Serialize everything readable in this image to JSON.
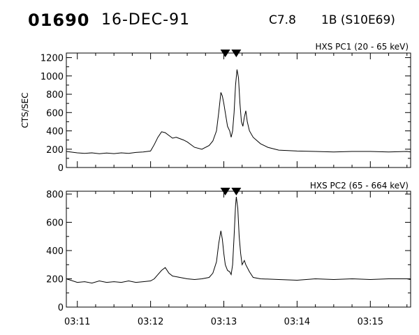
{
  "header": {
    "event_number": "01690",
    "date": "16-DEC-91",
    "goes_class": "C7.8",
    "optical_class": "1B (S10E69)"
  },
  "style": {
    "line_color": "#000000",
    "background": "#ffffff"
  },
  "chart_data": [
    {
      "type": "line",
      "title": "HXS PC1 (20 - 65 keV)",
      "ylabel": "CTS/SEC",
      "xlabel": "",
      "x_unit": "minutes after 03:11 UT",
      "xlim": [
        -0.15,
        4.55
      ],
      "ylim": [
        0,
        1250
      ],
      "yticks": [
        0,
        200,
        400,
        600,
        800,
        1000,
        1200
      ],
      "marker_times": [
        2.02,
        2.17
      ],
      "series": [
        {
          "values": [
            [
              -0.15,
              175
            ],
            [
              0.0,
              160
            ],
            [
              0.1,
              155
            ],
            [
              0.2,
              160
            ],
            [
              0.3,
              150
            ],
            [
              0.4,
              158
            ],
            [
              0.5,
              152
            ],
            [
              0.6,
              160
            ],
            [
              0.7,
              155
            ],
            [
              0.8,
              165
            ],
            [
              0.9,
              170
            ],
            [
              1.0,
              180
            ],
            [
              1.05,
              250
            ],
            [
              1.1,
              330
            ],
            [
              1.15,
              390
            ],
            [
              1.2,
              380
            ],
            [
              1.3,
              320
            ],
            [
              1.35,
              330
            ],
            [
              1.45,
              300
            ],
            [
              1.5,
              280
            ],
            [
              1.6,
              220
            ],
            [
              1.7,
              200
            ],
            [
              1.8,
              240
            ],
            [
              1.85,
              290
            ],
            [
              1.9,
              400
            ],
            [
              1.93,
              600
            ],
            [
              1.96,
              820
            ],
            [
              1.98,
              780
            ],
            [
              2.0,
              700
            ],
            [
              2.02,
              600
            ],
            [
              2.05,
              450
            ],
            [
              2.08,
              400
            ],
            [
              2.1,
              330
            ],
            [
              2.12,
              400
            ],
            [
              2.14,
              600
            ],
            [
              2.16,
              900
            ],
            [
              2.18,
              1070
            ],
            [
              2.2,
              980
            ],
            [
              2.22,
              700
            ],
            [
              2.24,
              500
            ],
            [
              2.26,
              450
            ],
            [
              2.28,
              550
            ],
            [
              2.3,
              620
            ],
            [
              2.32,
              500
            ],
            [
              2.35,
              400
            ],
            [
              2.4,
              330
            ],
            [
              2.5,
              260
            ],
            [
              2.6,
              220
            ],
            [
              2.75,
              190
            ],
            [
              3.0,
              180
            ],
            [
              3.25,
              175
            ],
            [
              3.5,
              170
            ],
            [
              3.75,
              175
            ],
            [
              4.0,
              175
            ],
            [
              4.25,
              170
            ],
            [
              4.5,
              175
            ],
            [
              4.55,
              170
            ]
          ]
        }
      ]
    },
    {
      "type": "line",
      "title": "HXS PC2 (65 - 664 keV)",
      "ylabel": "",
      "xlabel": "",
      "x_unit": "minutes after 03:11 UT",
      "xlim": [
        -0.15,
        4.55
      ],
      "ylim": [
        0,
        820
      ],
      "yticks": [
        0,
        200,
        400,
        600,
        800
      ],
      "xticks": [
        0,
        1,
        2,
        3,
        4
      ],
      "xtick_labels": [
        "03:11",
        "03:12",
        "03:13",
        "03:14",
        "03:15"
      ],
      "marker_times": [
        2.02,
        2.17
      ],
      "series": [
        {
          "values": [
            [
              -0.15,
              200
            ],
            [
              0.0,
              175
            ],
            [
              0.1,
              180
            ],
            [
              0.2,
              170
            ],
            [
              0.3,
              185
            ],
            [
              0.4,
              175
            ],
            [
              0.5,
              180
            ],
            [
              0.6,
              175
            ],
            [
              0.7,
              185
            ],
            [
              0.8,
              175
            ],
            [
              0.9,
              180
            ],
            [
              1.0,
              185
            ],
            [
              1.05,
              200
            ],
            [
              1.1,
              230
            ],
            [
              1.15,
              260
            ],
            [
              1.2,
              280
            ],
            [
              1.25,
              240
            ],
            [
              1.3,
              220
            ],
            [
              1.4,
              210
            ],
            [
              1.5,
              200
            ],
            [
              1.6,
              195
            ],
            [
              1.7,
              200
            ],
            [
              1.8,
              210
            ],
            [
              1.85,
              240
            ],
            [
              1.9,
              320
            ],
            [
              1.93,
              450
            ],
            [
              1.96,
              540
            ],
            [
              1.98,
              480
            ],
            [
              2.0,
              380
            ],
            [
              2.02,
              300
            ],
            [
              2.05,
              260
            ],
            [
              2.08,
              250
            ],
            [
              2.1,
              230
            ],
            [
              2.12,
              300
            ],
            [
              2.14,
              500
            ],
            [
              2.16,
              720
            ],
            [
              2.17,
              780
            ],
            [
              2.19,
              700
            ],
            [
              2.21,
              500
            ],
            [
              2.23,
              380
            ],
            [
              2.25,
              300
            ],
            [
              2.28,
              330
            ],
            [
              2.3,
              300
            ],
            [
              2.35,
              250
            ],
            [
              2.4,
              210
            ],
            [
              2.5,
              200
            ],
            [
              2.75,
              195
            ],
            [
              3.0,
              190
            ],
            [
              3.25,
              200
            ],
            [
              3.5,
              195
            ],
            [
              3.75,
              200
            ],
            [
              4.0,
              195
            ],
            [
              4.25,
              200
            ],
            [
              4.5,
              200
            ],
            [
              4.55,
              195
            ]
          ]
        }
      ]
    }
  ]
}
